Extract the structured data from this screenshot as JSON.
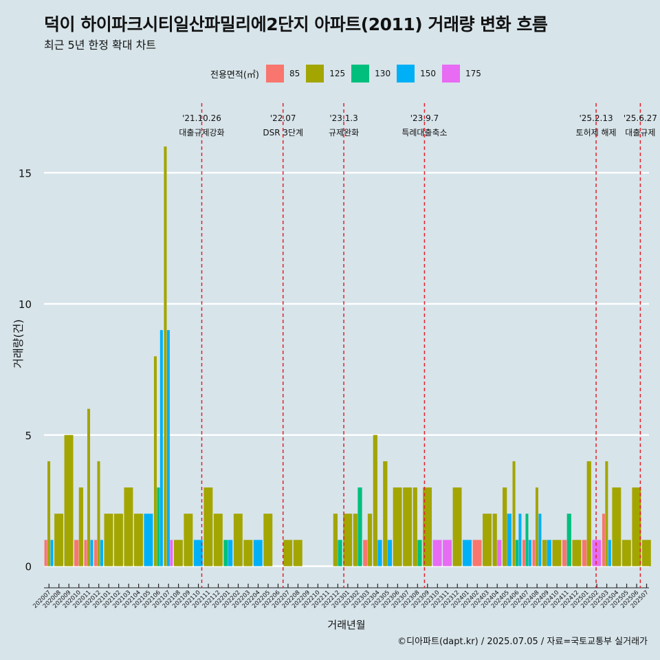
{
  "header": {
    "title": "덕이 하이파크시티일산파밀리에2단지 아파트(2011) 거래량 변화 흐름",
    "subtitle": "최근 5년 한정 확대 차트"
  },
  "legend": {
    "title": "전용면적(㎡)",
    "items": [
      {
        "label": "85",
        "color": "#f8766d"
      },
      {
        "label": "125",
        "color": "#a3a500"
      },
      {
        "label": "130",
        "color": "#00bf7d"
      },
      {
        "label": "150",
        "color": "#00b0f6"
      },
      {
        "label": "175",
        "color": "#e76bf3"
      }
    ]
  },
  "caption": "©디아파트(dapt.kr) / 2025.07.05 / 자료=국토교통부 실거래가",
  "chart_data": {
    "type": "bar",
    "xlabel": "거래년월",
    "ylabel": "거래량(건)",
    "ylim": [
      0,
      17
    ],
    "yticks": [
      0,
      5,
      10,
      15
    ],
    "grid": "horizontal",
    "legend_position": "top",
    "categories": [
      "202007",
      "202008",
      "202009",
      "202010",
      "202011",
      "202012",
      "202101",
      "202102",
      "202103",
      "202104",
      "202105",
      "202106",
      "202107",
      "202108",
      "202109",
      "202110",
      "202111",
      "202112",
      "202201",
      "202202",
      "202203",
      "202204",
      "202205",
      "202206",
      "202207",
      "202208",
      "202209",
      "202210",
      "202211",
      "202212",
      "202301",
      "202302",
      "202303",
      "202304",
      "202305",
      "202306",
      "202307",
      "202308",
      "202309",
      "202310",
      "202311",
      "202312",
      "202401",
      "202402",
      "202403",
      "202404",
      "202405",
      "202406",
      "202407",
      "202408",
      "202409",
      "202410",
      "202411",
      "202412",
      "202501",
      "202502",
      "202503",
      "202504",
      "202505",
      "202506",
      "202507"
    ],
    "series": [
      {
        "name": "85",
        "values": [
          1,
          0,
          0,
          1,
          1,
          1,
          0,
          0,
          0,
          0,
          0,
          0,
          0,
          0,
          0,
          0,
          0,
          0,
          0,
          0,
          0,
          0,
          0,
          0,
          0,
          0,
          0,
          0,
          0,
          0,
          0,
          0,
          1,
          0,
          0,
          0,
          0,
          0,
          0,
          0,
          0,
          0,
          0,
          1,
          0,
          0,
          0,
          0,
          1,
          1,
          0,
          0,
          1,
          0,
          1,
          0,
          2,
          0,
          0,
          0,
          0
        ]
      },
      {
        "name": "125",
        "values": [
          4,
          2,
          5,
          3,
          6,
          4,
          2,
          2,
          3,
          2,
          0,
          8,
          16,
          1,
          2,
          0,
          3,
          2,
          0,
          2,
          1,
          0,
          2,
          0,
          1,
          1,
          0,
          0,
          0,
          2,
          2,
          2,
          2,
          5,
          4,
          3,
          3,
          3,
          3,
          0,
          0,
          3,
          0,
          0,
          2,
          2,
          3,
          4,
          0,
          3,
          1,
          1,
          0,
          1,
          4,
          0,
          4,
          3,
          1,
          3,
          1
        ]
      },
      {
        "name": "130",
        "values": [
          0,
          0,
          0,
          0,
          0,
          0,
          0,
          0,
          0,
          0,
          0,
          3,
          0,
          0,
          0,
          0,
          0,
          0,
          1,
          0,
          0,
          0,
          0,
          0,
          0,
          0,
          0,
          0,
          0,
          1,
          0,
          3,
          0,
          0,
          0,
          0,
          0,
          1,
          0,
          0,
          0,
          0,
          0,
          0,
          0,
          0,
          0,
          1,
          2,
          0,
          0,
          0,
          2,
          0,
          0,
          0,
          0,
          0,
          0,
          0,
          0
        ]
      },
      {
        "name": "150",
        "values": [
          1,
          0,
          0,
          0,
          1,
          1,
          0,
          0,
          0,
          0,
          2,
          9,
          9,
          0,
          0,
          1,
          0,
          0,
          1,
          0,
          0,
          1,
          0,
          0,
          0,
          0,
          0,
          0,
          0,
          0,
          0,
          0,
          0,
          1,
          1,
          0,
          0,
          0,
          0,
          0,
          0,
          0,
          1,
          0,
          0,
          0,
          2,
          2,
          1,
          2,
          1,
          0,
          0,
          0,
          0,
          0,
          1,
          0,
          0,
          0,
          0
        ]
      },
      {
        "name": "175",
        "values": [
          0,
          0,
          0,
          0,
          0,
          0,
          0,
          0,
          0,
          0,
          0,
          0,
          1,
          0,
          0,
          0,
          0,
          0,
          0,
          0,
          0,
          0,
          0,
          0,
          0,
          0,
          0,
          0,
          0,
          0,
          0,
          0,
          0,
          0,
          0,
          0,
          0,
          0,
          0,
          1,
          1,
          0,
          0,
          0,
          0,
          1,
          0,
          0,
          0,
          0,
          0,
          0,
          0,
          0,
          0,
          1,
          0,
          0,
          0,
          0,
          0
        ]
      }
    ],
    "annotations": [
      {
        "date_label": "'21.10.26",
        "event": "대출규제강화",
        "month": "202110",
        "offset": 0.84
      },
      {
        "date_label": "'22.07",
        "event": "DSR 3단계",
        "month": "202207",
        "offset": 0.0
      },
      {
        "date_label": "'23.1.3",
        "event": "규제완화",
        "month": "202301",
        "offset": 0.1
      },
      {
        "date_label": "'23.9.7",
        "event": "특례대출축소",
        "month": "202309",
        "offset": 0.2
      },
      {
        "date_label": "'25.2.13",
        "event": "토허제 해제",
        "month": "202502",
        "offset": 0.43
      },
      {
        "date_label": "'25.6.27",
        "event": "대출규제",
        "month": "202506",
        "offset": 0.87
      }
    ]
  }
}
